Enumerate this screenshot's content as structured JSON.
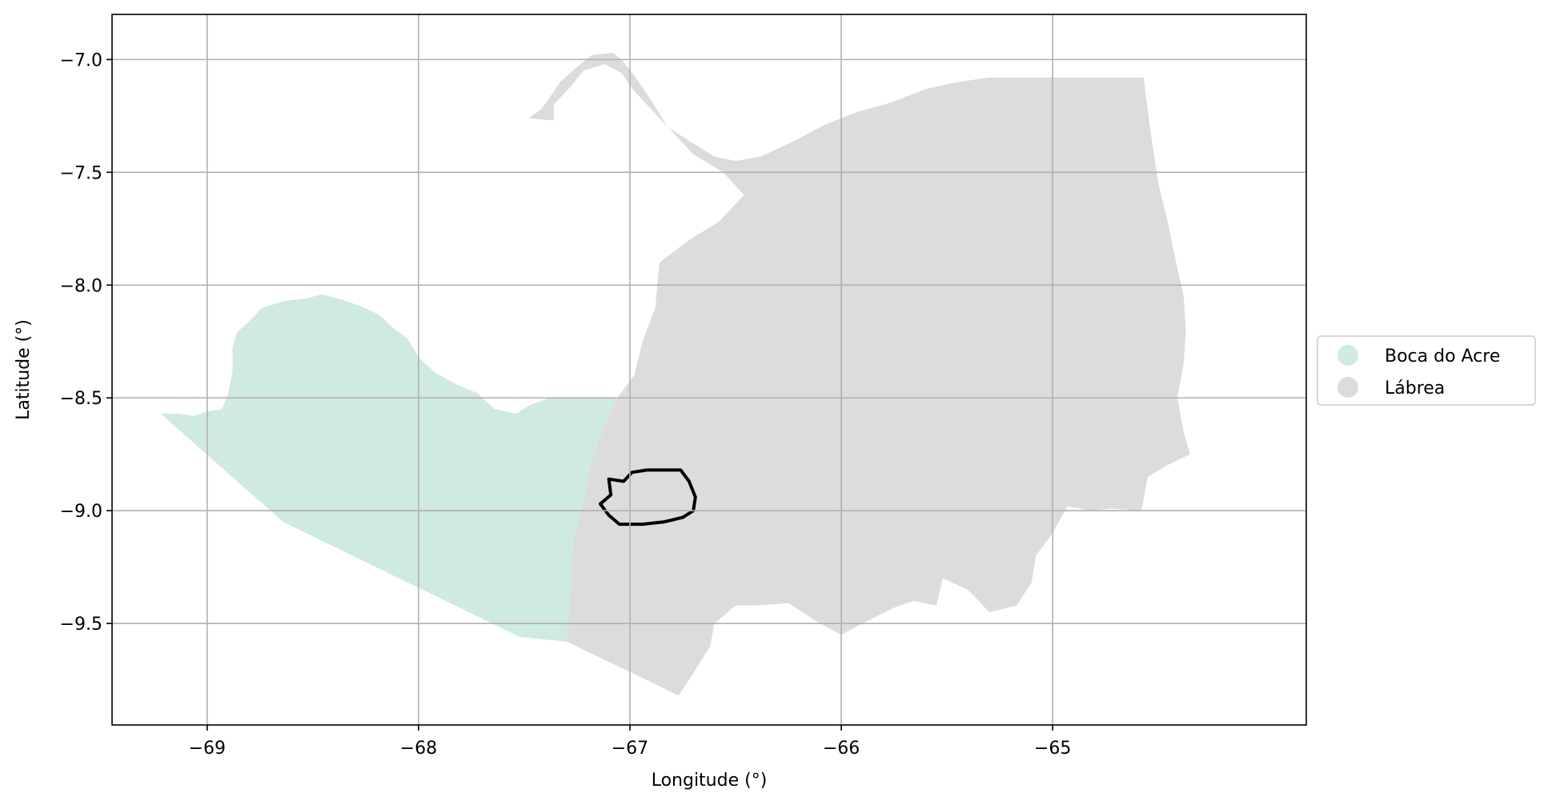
{
  "chart_data": {
    "type": "map",
    "xlabel": "Longitude (°)",
    "ylabel": "Latitude (°)",
    "xlim": [
      -69.45,
      -63.8
    ],
    "ylim": [
      -9.95,
      -6.8
    ],
    "xticks": [
      -69,
      -68,
      -67,
      -66,
      -65
    ],
    "xtick_labels": [
      "−69",
      "−68",
      "−67",
      "−66",
      "−65"
    ],
    "yticks": [
      -7.0,
      -7.5,
      -8.0,
      -8.5,
      -9.0,
      -9.5
    ],
    "ytick_labels": [
      "−7.0",
      "−7.5",
      "−8.0",
      "−8.5",
      "−9.0",
      "−9.5"
    ],
    "grid": true,
    "legend_position": "right",
    "regions": [
      {
        "name": "Boca do Acre",
        "color": "#cfeadf",
        "polygon": [
          [
            -69.22,
            -8.57
          ],
          [
            -69.14,
            -8.57
          ],
          [
            -69.06,
            -8.58
          ],
          [
            -69.0,
            -8.56
          ],
          [
            -68.93,
            -8.55
          ],
          [
            -68.9,
            -8.48
          ],
          [
            -68.88,
            -8.38
          ],
          [
            -68.88,
            -8.28
          ],
          [
            -68.86,
            -8.21
          ],
          [
            -68.8,
            -8.16
          ],
          [
            -68.74,
            -8.1
          ],
          [
            -68.63,
            -8.07
          ],
          [
            -68.53,
            -8.06
          ],
          [
            -68.46,
            -8.04
          ],
          [
            -68.38,
            -8.06
          ],
          [
            -68.28,
            -8.09
          ],
          [
            -68.19,
            -8.13
          ],
          [
            -68.12,
            -8.19
          ],
          [
            -68.05,
            -8.24
          ],
          [
            -68.0,
            -8.32
          ],
          [
            -67.92,
            -8.39
          ],
          [
            -67.82,
            -8.44
          ],
          [
            -67.72,
            -8.48
          ],
          [
            -67.64,
            -8.55
          ],
          [
            -67.54,
            -8.57
          ],
          [
            -67.47,
            -8.53
          ],
          [
            -67.38,
            -8.5
          ],
          [
            -67.2,
            -8.5
          ],
          [
            -67.06,
            -8.5
          ],
          [
            -67.12,
            -8.62
          ],
          [
            -67.18,
            -8.78
          ],
          [
            -67.22,
            -8.96
          ],
          [
            -67.27,
            -9.15
          ],
          [
            -67.28,
            -9.35
          ],
          [
            -67.3,
            -9.58
          ],
          [
            -67.52,
            -9.56
          ],
          [
            -68.64,
            -9.05
          ],
          [
            -69.22,
            -8.57
          ]
        ]
      },
      {
        "name": "Lábrea",
        "color": "#dcdcdc",
        "polygon": [
          [
            -66.77,
            -9.82
          ],
          [
            -66.9,
            -9.76
          ],
          [
            -67.3,
            -9.58
          ],
          [
            -67.28,
            -9.35
          ],
          [
            -67.27,
            -9.15
          ],
          [
            -67.22,
            -8.96
          ],
          [
            -67.18,
            -8.78
          ],
          [
            -67.12,
            -8.62
          ],
          [
            -67.06,
            -8.5
          ],
          [
            -66.98,
            -8.4
          ],
          [
            -66.94,
            -8.25
          ],
          [
            -66.88,
            -8.1
          ],
          [
            -66.86,
            -7.9
          ],
          [
            -66.72,
            -7.8
          ],
          [
            -66.58,
            -7.72
          ],
          [
            -66.46,
            -7.6
          ],
          [
            -66.56,
            -7.5
          ],
          [
            -66.7,
            -7.42
          ],
          [
            -66.82,
            -7.3
          ],
          [
            -66.9,
            -7.18
          ],
          [
            -66.98,
            -7.07
          ],
          [
            -67.04,
            -7.0
          ],
          [
            -67.08,
            -6.97
          ],
          [
            -67.18,
            -6.98
          ],
          [
            -67.26,
            -7.04
          ],
          [
            -67.33,
            -7.1
          ],
          [
            -67.38,
            -7.17
          ],
          [
            -67.42,
            -7.22
          ],
          [
            -67.48,
            -7.26
          ],
          [
            -67.36,
            -7.27
          ],
          [
            -67.36,
            -7.2
          ],
          [
            -67.28,
            -7.12
          ],
          [
            -67.22,
            -7.05
          ],
          [
            -67.12,
            -7.02
          ],
          [
            -67.04,
            -7.06
          ],
          [
            -66.98,
            -7.14
          ],
          [
            -66.9,
            -7.22
          ],
          [
            -66.82,
            -7.3
          ],
          [
            -66.72,
            -7.36
          ],
          [
            -66.6,
            -7.43
          ],
          [
            -66.5,
            -7.45
          ],
          [
            -66.38,
            -7.43
          ],
          [
            -66.22,
            -7.36
          ],
          [
            -66.08,
            -7.29
          ],
          [
            -65.92,
            -7.23
          ],
          [
            -65.76,
            -7.19
          ],
          [
            -65.6,
            -7.13
          ],
          [
            -65.45,
            -7.1
          ],
          [
            -65.3,
            -7.08
          ],
          [
            -65.1,
            -7.08
          ],
          [
            -64.95,
            -7.08
          ],
          [
            -64.75,
            -7.08
          ],
          [
            -64.57,
            -7.08
          ],
          [
            -64.54,
            -7.3
          ],
          [
            -64.5,
            -7.55
          ],
          [
            -64.46,
            -7.7
          ],
          [
            -64.42,
            -7.88
          ],
          [
            -64.38,
            -8.05
          ],
          [
            -64.37,
            -8.2
          ],
          [
            -64.38,
            -8.35
          ],
          [
            -64.41,
            -8.5
          ],
          [
            -64.38,
            -8.65
          ],
          [
            -64.35,
            -8.75
          ],
          [
            -64.46,
            -8.8
          ],
          [
            -64.55,
            -8.85
          ],
          [
            -64.58,
            -9.0
          ],
          [
            -64.72,
            -8.99
          ],
          [
            -64.82,
            -9.0
          ],
          [
            -64.93,
            -8.98
          ],
          [
            -65.0,
            -9.1
          ],
          [
            -65.08,
            -9.2
          ],
          [
            -65.1,
            -9.32
          ],
          [
            -65.17,
            -9.42
          ],
          [
            -65.3,
            -9.45
          ],
          [
            -65.4,
            -9.35
          ],
          [
            -65.52,
            -9.3
          ],
          [
            -65.55,
            -9.42
          ],
          [
            -65.66,
            -9.4
          ],
          [
            -65.75,
            -9.43
          ],
          [
            -65.9,
            -9.5
          ],
          [
            -66.0,
            -9.55
          ],
          [
            -66.1,
            -9.5
          ],
          [
            -66.25,
            -9.41
          ],
          [
            -66.4,
            -9.42
          ],
          [
            -66.5,
            -9.42
          ],
          [
            -66.6,
            -9.5
          ],
          [
            -66.62,
            -9.6
          ],
          [
            -66.7,
            -9.72
          ],
          [
            -66.77,
            -9.82
          ]
        ]
      }
    ],
    "outline": {
      "color": "#000000",
      "polygon": [
        [
          -66.99,
          -8.83
        ],
        [
          -66.92,
          -8.82
        ],
        [
          -66.84,
          -8.82
        ],
        [
          -66.76,
          -8.82
        ],
        [
          -66.72,
          -8.87
        ],
        [
          -66.69,
          -8.94
        ],
        [
          -66.7,
          -9.0
        ],
        [
          -66.75,
          -9.03
        ],
        [
          -66.84,
          -9.05
        ],
        [
          -66.94,
          -9.06
        ],
        [
          -67.05,
          -9.06
        ],
        [
          -67.1,
          -9.02
        ],
        [
          -67.14,
          -8.97
        ],
        [
          -67.09,
          -8.93
        ],
        [
          -67.1,
          -8.86
        ],
        [
          -67.03,
          -8.87
        ],
        [
          -66.99,
          -8.83
        ]
      ]
    }
  }
}
